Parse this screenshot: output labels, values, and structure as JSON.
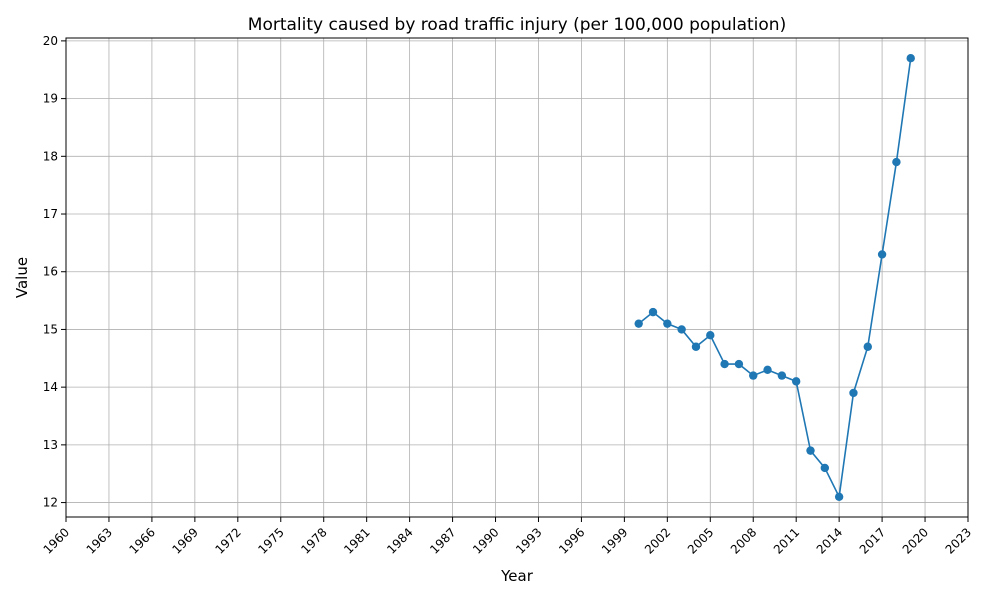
{
  "chart_data": {
    "type": "line",
    "title": "Mortality caused by road traffic injury (per 100,000 population)",
    "xlabel": "Year",
    "ylabel": "Value",
    "xlim": [
      1960,
      2023
    ],
    "ylim": [
      11.75,
      20.05
    ],
    "x_ticks": [
      1960,
      1963,
      1966,
      1969,
      1972,
      1975,
      1978,
      1981,
      1984,
      1987,
      1990,
      1993,
      1996,
      1999,
      2002,
      2005,
      2008,
      2011,
      2014,
      2017,
      2020,
      2023
    ],
    "y_ticks": [
      12,
      13,
      14,
      15,
      16,
      17,
      18,
      19,
      20
    ],
    "grid": true,
    "color": "#1f77b4",
    "series": [
      {
        "x": [
          2000,
          2001,
          2002,
          2003,
          2004,
          2005,
          2006,
          2007,
          2008,
          2009,
          2010,
          2011,
          2012,
          2013,
          2014,
          2015,
          2016,
          2017,
          2018,
          2019
        ],
        "values": [
          15.1,
          15.3,
          15.1,
          15.0,
          14.7,
          14.9,
          14.4,
          14.4,
          14.2,
          14.3,
          14.2,
          14.1,
          12.9,
          12.6,
          12.1,
          13.9,
          14.7,
          16.3,
          17.9,
          19.7
        ]
      }
    ]
  }
}
